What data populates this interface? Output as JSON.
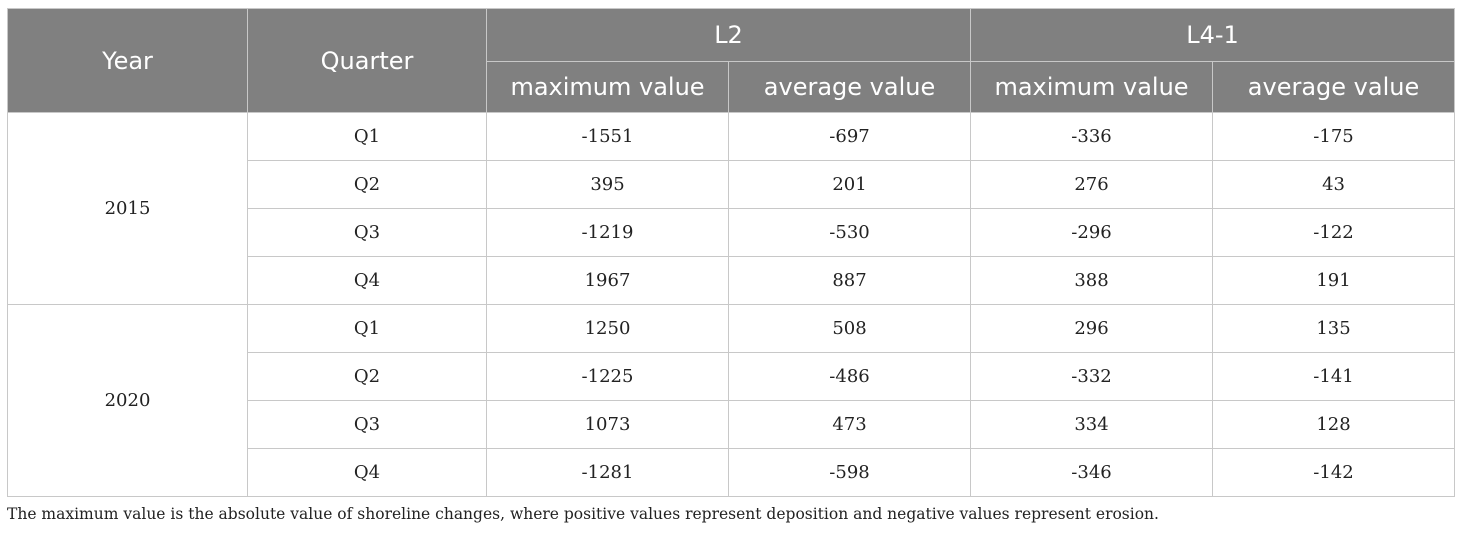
{
  "table": {
    "headers": {
      "year": "Year",
      "quarter": "Quarter",
      "group_l2": "L2",
      "group_l41": "L4-1",
      "l2_max": "maximum value",
      "l2_avg": "average value",
      "l41_max": "maximum value",
      "l41_avg": "average value"
    },
    "groups": [
      {
        "year": "2015",
        "rows": [
          {
            "quarter": "Q1",
            "l2_max": "-1551",
            "l2_avg": "-697",
            "l41_max": "-336",
            "l41_avg": "-175"
          },
          {
            "quarter": "Q2",
            "l2_max": "395",
            "l2_avg": "201",
            "l41_max": "276",
            "l41_avg": "43"
          },
          {
            "quarter": "Q3",
            "l2_max": "-1219",
            "l2_avg": "-530",
            "l41_max": "-296",
            "l41_avg": "-122"
          },
          {
            "quarter": "Q4",
            "l2_max": "1967",
            "l2_avg": "887",
            "l41_max": "388",
            "l41_avg": "191"
          }
        ]
      },
      {
        "year": "2020",
        "rows": [
          {
            "quarter": "Q1",
            "l2_max": "1250",
            "l2_avg": "508",
            "l41_max": "296",
            "l41_avg": "135"
          },
          {
            "quarter": "Q2",
            "l2_max": "-1225",
            "l2_avg": "-486",
            "l41_max": "-332",
            "l41_avg": "-141"
          },
          {
            "quarter": "Q3",
            "l2_max": "1073",
            "l2_avg": "473",
            "l41_max": "334",
            "l41_avg": "128"
          },
          {
            "quarter": "Q4",
            "l2_max": "-1281",
            "l2_avg": "-598",
            "l41_max": "-346",
            "l41_avg": "-142"
          }
        ]
      }
    ]
  },
  "footnote": "The maximum value is the absolute value of shoreline changes, where positive values represent deposition and negative values represent erosion.",
  "colors": {
    "header_bg": "#808080",
    "header_text": "#ffffff",
    "grid_line": "#c8c8c8"
  }
}
